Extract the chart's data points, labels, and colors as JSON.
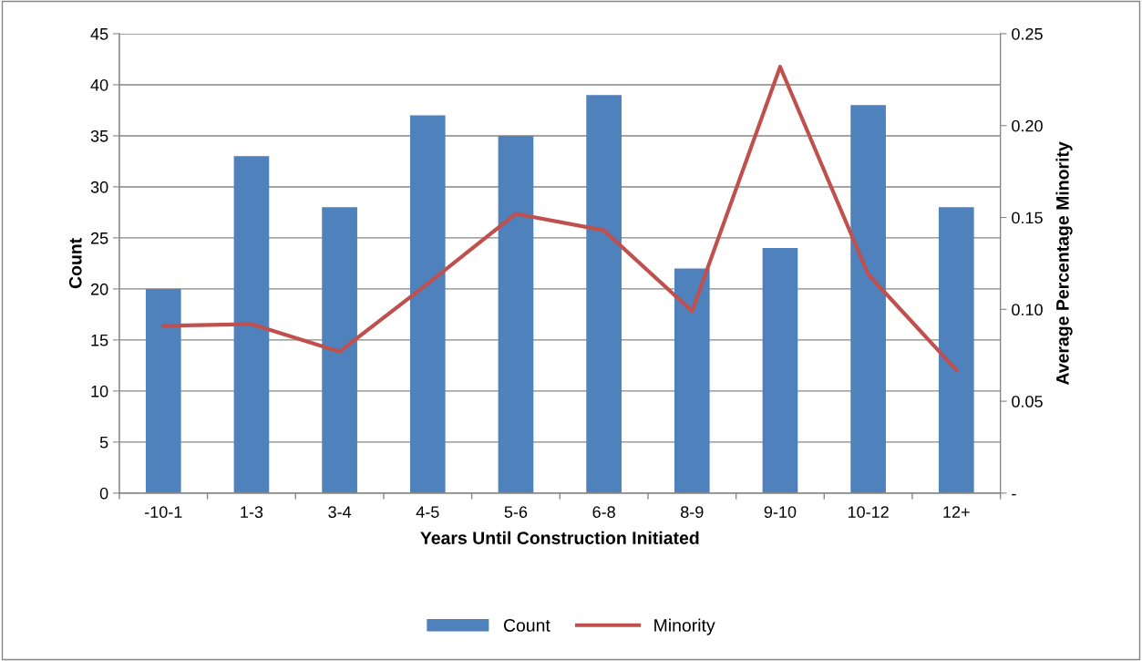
{
  "chart_data": {
    "type": "bar",
    "xlabel": "Years Until Construction Initiated",
    "ylabel": "Count",
    "y2label": "Average Percentage Minority",
    "categories": [
      "-10-1",
      "1-3",
      "3-4",
      "4-5",
      "5-6",
      "6-8",
      "8-9",
      "9-10",
      "10-12",
      "12+"
    ],
    "series": [
      {
        "name": "Count",
        "color": "#4f81bd",
        "values": [
          20,
          33,
          28,
          37,
          35,
          39,
          22,
          24,
          38,
          28
        ]
      },
      {
        "name": "Minority",
        "type": "line",
        "axis": "y2",
        "color": "#c0504d",
        "values": [
          0.091,
          0.092,
          0.077,
          0.114,
          0.152,
          0.143,
          0.099,
          0.232,
          0.119,
          0.067
        ]
      }
    ],
    "ylim": [
      0,
      45
    ],
    "yticks": [
      0,
      5,
      10,
      15,
      20,
      25,
      30,
      35,
      40,
      45
    ],
    "y2lim": [
      0,
      0.25
    ],
    "y2ticks": [
      {
        "value": 0,
        "label": "-"
      },
      {
        "value": 0.05,
        "label": "0.05"
      },
      {
        "value": 0.1,
        "label": "0.10"
      },
      {
        "value": 0.15,
        "label": "0.15"
      },
      {
        "value": 0.2,
        "label": "0.20"
      },
      {
        "value": 0.25,
        "label": "0.25"
      }
    ],
    "grid": "y",
    "legend": "bottom",
    "marker": "none",
    "line_style": "solid"
  }
}
